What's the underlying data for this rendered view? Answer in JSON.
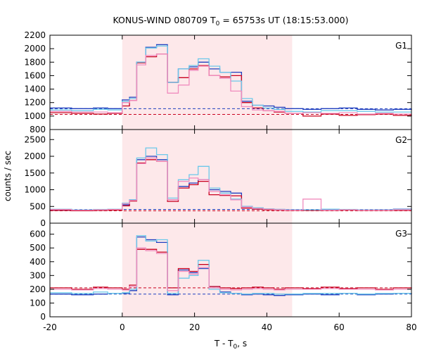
{
  "chart_data": {
    "type": "line",
    "title_prefix": "KONUS-WIND 080709 T",
    "title_sub": "0",
    "title_suffix": " = 65753s UT (18:15:53.000)",
    "ylabel": "counts / sec",
    "xlabel_prefix": "T - T",
    "xlabel_sub": "0",
    "xlabel_suffix": ", s",
    "xlim": [
      -20,
      80
    ],
    "xticks": [
      -20,
      0,
      20,
      40,
      60,
      80
    ],
    "highlight": {
      "x0": 0,
      "x1": 47,
      "color": "#fde8ea"
    },
    "colors": {
      "blue": "#1f3fbf",
      "red": "#c8001e",
      "lightblue": "#6cc8ea",
      "pink": "#f08cbe",
      "frame": "#000000"
    },
    "panels": [
      {
        "label": "G1",
        "ylim": [
          800,
          2200
        ],
        "yticks": [
          800,
          1000,
          1200,
          1400,
          1600,
          1800,
          2000,
          2200
        ],
        "background": [
          {
            "name": "blue-background",
            "y": 1110,
            "color": "blue"
          },
          {
            "name": "red-background",
            "y": 1025,
            "color": "red"
          }
        ],
        "series": [
          {
            "color": "blue",
            "x": [
              -20,
              -14,
              -8,
              -4,
              0,
              2,
              4,
              6.5,
              9.5,
              12.5,
              15.5,
              18.5,
              21,
              24,
              27,
              30,
              33,
              36,
              39,
              42,
              45,
              50,
              55,
              60,
              65,
              70,
              75,
              80
            ],
            "y": [
              1120,
              1110,
              1120,
              1110,
              1240,
              1280,
              1800,
              2020,
              2060,
              1500,
              1700,
              1730,
              1800,
              1700,
              1650,
              1650,
              1220,
              1160,
              1150,
              1130,
              1110,
              1100,
              1110,
              1120,
              1100,
              1090,
              1100,
              1090
            ]
          },
          {
            "color": "red",
            "x": [
              -20,
              -14,
              -8,
              -4,
              0,
              2,
              4,
              6.5,
              9.5,
              12.5,
              15.5,
              18.5,
              21,
              24,
              27,
              30,
              33,
              36,
              39,
              42,
              45,
              50,
              55,
              60,
              65,
              70,
              75,
              80
            ],
            "y": [
              1050,
              1040,
              1030,
              1040,
              1150,
              1230,
              1790,
              1880,
              1920,
              1500,
              1570,
              1700,
              1750,
              1600,
              1580,
              1600,
              1200,
              1120,
              1080,
              1060,
              1040,
              1000,
              1030,
              1010,
              1020,
              1030,
              1010,
              1020
            ]
          },
          {
            "color": "lightblue",
            "x": [
              -20,
              -14,
              -8,
              -4,
              0,
              2,
              4,
              6.5,
              9.5,
              12.5,
              15.5,
              18.5,
              21,
              24,
              27,
              30,
              33,
              36,
              39,
              42,
              45,
              50,
              55,
              60,
              65,
              70,
              75,
              80
            ],
            "y": [
              1090,
              1080,
              1100,
              1090,
              1220,
              1260,
              1800,
              2010,
              2040,
              1500,
              1700,
              1750,
              1850,
              1740,
              1650,
              1520,
              1260,
              1160,
              1120,
              1100,
              1070,
              1060,
              1080,
              1080,
              1070,
              1060,
              1060,
              1060
            ]
          },
          {
            "color": "pink",
            "x": [
              -20,
              -14,
              -8,
              -4,
              0,
              2,
              4,
              6.5,
              9.5,
              12.5,
              15.5,
              18.5,
              21,
              24,
              27,
              30,
              33,
              36,
              39,
              42,
              45,
              50,
              55,
              60,
              65,
              70,
              75,
              80
            ],
            "y": [
              1070,
              1060,
              1060,
              1050,
              1200,
              1230,
              1760,
              1900,
              1920,
              1340,
              1460,
              1680,
              1740,
              1600,
              1560,
              1370,
              1140,
              1090,
              1080,
              1070,
              1040,
              1050,
              1040,
              1050,
              1030,
              1040,
              1030,
              1030
            ]
          }
        ]
      },
      {
        "label": "G2",
        "ylim": [
          0,
          2800
        ],
        "yticks": [
          0,
          500,
          1000,
          1500,
          2000,
          2500
        ],
        "background": [
          {
            "name": "blue-background",
            "y": 410,
            "color": "blue"
          },
          {
            "name": "red-background",
            "y": 370,
            "color": "red"
          }
        ],
        "series": [
          {
            "color": "blue",
            "x": [
              -20,
              -14,
              -8,
              -4,
              0,
              2,
              4,
              6.5,
              9.5,
              12.5,
              15.5,
              18.5,
              21,
              24,
              27,
              30,
              33,
              36,
              39,
              42,
              45,
              50,
              55,
              60,
              65,
              70,
              75,
              80
            ],
            "y": [
              400,
              390,
              400,
              410,
              550,
              700,
              1900,
              2000,
              1900,
              700,
              1100,
              1200,
              1300,
              1000,
              950,
              900,
              500,
              450,
              420,
              410,
              400,
              390,
              410,
              400,
              390,
              400,
              420,
              400
            ]
          },
          {
            "color": "red",
            "x": [
              -20,
              -14,
              -8,
              -4,
              0,
              2,
              4,
              6.5,
              9.5,
              12.5,
              15.5,
              18.5,
              21,
              24,
              27,
              30,
              33,
              36,
              39,
              42,
              45,
              50,
              55,
              60,
              65,
              70,
              75,
              80
            ],
            "y": [
              380,
              370,
              380,
              390,
              520,
              660,
              1800,
              1900,
              1850,
              650,
              1050,
              1150,
              1250,
              850,
              830,
              820,
              450,
              420,
              400,
              390,
              380,
              380,
              380,
              390,
              380,
              380,
              380,
              380
            ]
          },
          {
            "color": "lightblue",
            "x": [
              -20,
              -14,
              -8,
              -4,
              0,
              2,
              4,
              6.5,
              9.5,
              12.5,
              15.5,
              18.5,
              21,
              24,
              27,
              30,
              33,
              36,
              39,
              42,
              45,
              50,
              55,
              60,
              65,
              70,
              75,
              80
            ],
            "y": [
              420,
              400,
              410,
              420,
              600,
              700,
              1950,
              2250,
              2050,
              750,
              1300,
              1450,
              1700,
              1050,
              900,
              720,
              500,
              460,
              430,
              410,
              400,
              400,
              420,
              410,
              400,
              400,
              410,
              410
            ]
          },
          {
            "color": "pink",
            "x": [
              -20,
              -14,
              -8,
              -4,
              0,
              2,
              4,
              6.5,
              9.5,
              12.5,
              15.5,
              18.5,
              21,
              24,
              27,
              30,
              33,
              36,
              39,
              42,
              45,
              50,
              55,
              60,
              65,
              70,
              75,
              80
            ],
            "y": [
              410,
              390,
              400,
              410,
              580,
              680,
              1780,
              1950,
              1850,
              700,
              1250,
              1350,
              1300,
              950,
              850,
              700,
              480,
              440,
              420,
              400,
              390,
              720,
              390,
              400,
              390,
              390,
              400,
              400
            ]
          }
        ]
      },
      {
        "label": "G3",
        "ylim": [
          0,
          680
        ],
        "yticks": [
          0,
          100,
          200,
          300,
          400,
          500,
          600
        ],
        "background": [
          {
            "name": "red-background",
            "y": 210,
            "color": "red"
          },
          {
            "name": "blue-background",
            "y": 165,
            "color": "blue"
          }
        ],
        "series": [
          {
            "color": "blue",
            "x": [
              -20,
              -14,
              -8,
              -4,
              0,
              2,
              4,
              6.5,
              9.5,
              12.5,
              15.5,
              18.5,
              21,
              24,
              27,
              30,
              33,
              36,
              39,
              42,
              45,
              50,
              55,
              60,
              65,
              70,
              75,
              80
            ],
            "y": [
              165,
              160,
              165,
              170,
              170,
              190,
              580,
              560,
              540,
              160,
              340,
              320,
              350,
              220,
              180,
              170,
              160,
              165,
              160,
              155,
              160,
              165,
              160,
              170,
              160,
              165,
              170,
              165
            ]
          },
          {
            "color": "red",
            "x": [
              -20,
              -14,
              -8,
              -4,
              0,
              2,
              4,
              6.5,
              9.5,
              12.5,
              15.5,
              18.5,
              21,
              24,
              27,
              30,
              33,
              36,
              39,
              42,
              45,
              50,
              55,
              60,
              65,
              70,
              75,
              80
            ],
            "y": [
              210,
              200,
              215,
              210,
              200,
              230,
              490,
              490,
              470,
              210,
              350,
              330,
              380,
              220,
              210,
              205,
              210,
              215,
              210,
              200,
              210,
              205,
              215,
              205,
              210,
              200,
              210,
              205
            ]
          },
          {
            "color": "lightblue",
            "x": [
              -20,
              -14,
              -8,
              -4,
              0,
              2,
              4,
              6.5,
              9.5,
              12.5,
              15.5,
              18.5,
              21,
              24,
              27,
              30,
              33,
              36,
              39,
              42,
              45,
              50,
              55,
              60,
              65,
              70,
              75,
              80
            ],
            "y": [
              175,
              170,
              180,
              170,
              175,
              200,
              590,
              550,
              560,
              170,
              280,
              300,
              410,
              200,
              175,
              170,
              165,
              170,
              170,
              165,
              165,
              170,
              170,
              170,
              165,
              170,
              170,
              170
            ]
          },
          {
            "color": "pink",
            "x": [
              -20,
              -14,
              -8,
              -4,
              0,
              2,
              4,
              6.5,
              9.5,
              12.5,
              15.5,
              18.5,
              21,
              24,
              27,
              30,
              33,
              36,
              39,
              42,
              45,
              50,
              55,
              60,
              65,
              70,
              75,
              80
            ],
            "y": [
              200,
              195,
              205,
              200,
              195,
              220,
              500,
              480,
              460,
              190,
              330,
              310,
              360,
              210,
              200,
              195,
              200,
              205,
              200,
              195,
              200,
              200,
              205,
              200,
              200,
              195,
              200,
              200
            ]
          }
        ]
      }
    ]
  }
}
